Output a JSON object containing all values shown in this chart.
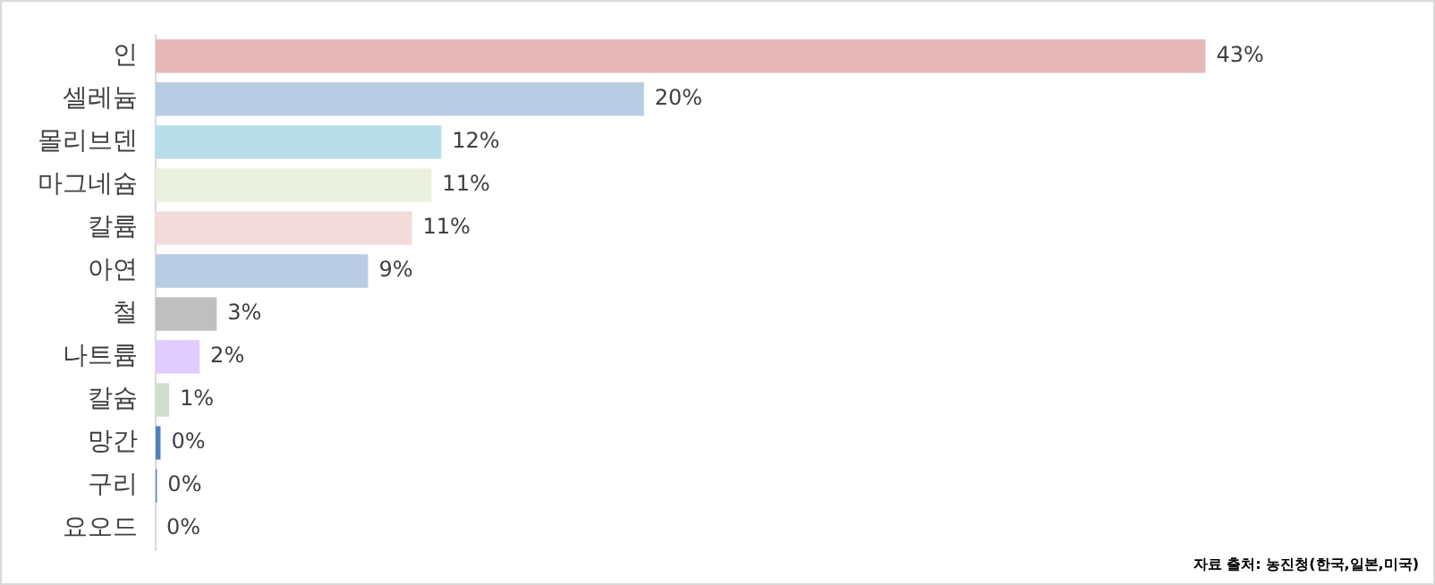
{
  "chart_data": {
    "type": "bar",
    "orientation": "horizontal",
    "categories": [
      "인",
      "셀레늄",
      "몰리브덴",
      "마그네슘",
      "칼륨",
      "아연",
      "철",
      "나트륨",
      "칼슘",
      "망간",
      "구리",
      "요오드"
    ],
    "values": [
      43,
      20,
      11.7,
      11.3,
      10.5,
      8.7,
      2.5,
      1.8,
      0.55,
      0.2,
      0.05,
      0
    ],
    "value_labels": [
      "43%",
      "20%",
      "12%",
      "11%",
      "11%",
      "9%",
      "3%",
      "2%",
      "1%",
      "0%",
      "0%",
      "0%"
    ],
    "colors": [
      "#e6b8b7",
      "#b8cce4",
      "#b7dde8",
      "#ebf1de",
      "#f2dcdb",
      "#b8cce4",
      "#bfbfbf",
      "#e0ccff",
      "#d0e0cc",
      "#4f81bd",
      "#4f81bd",
      "#4f81bd"
    ],
    "tick_labels": "y",
    "grid": false,
    "legend": false,
    "annotations": [
      "자료 출처: 농진청(한국,일본,미국)"
    ]
  }
}
